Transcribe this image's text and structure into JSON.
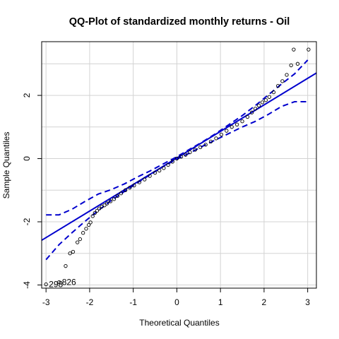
{
  "chart_data": {
    "type": "scatter",
    "title": "QQ-Plot of standardized monthly returns - Oil",
    "xlabel": "Theoretical Quantiles",
    "ylabel": "Sample Quantiles",
    "xlim": [
      -3.1,
      3.2
    ],
    "ylim": [
      -4.1,
      3.7
    ],
    "x_ticks": [
      -3,
      -2,
      -1,
      0,
      1,
      2,
      3
    ],
    "y_ticks": [
      -4,
      -2,
      0,
      2
    ],
    "grid": true,
    "colors": {
      "points": "#000000",
      "reference": "#0000cd",
      "envelope": "#0000cd",
      "grid": "#d3d3d3"
    },
    "points": [
      [
        -3.0,
        -3.98
      ],
      [
        -2.7,
        -3.91
      ],
      [
        -2.55,
        -3.4
      ],
      [
        -2.45,
        -3.0
      ],
      [
        -2.38,
        -2.95
      ],
      [
        -2.28,
        -2.65
      ],
      [
        -2.22,
        -2.55
      ],
      [
        -2.15,
        -2.35
      ],
      [
        -2.08,
        -2.22
      ],
      [
        -2.02,
        -2.1
      ],
      [
        -1.98,
        -2.02
      ],
      [
        -1.93,
        -1.82
      ],
      [
        -1.88,
        -1.72
      ],
      [
        -1.83,
        -1.65
      ],
      [
        -1.78,
        -1.58
      ],
      [
        -1.72,
        -1.52
      ],
      [
        -1.66,
        -1.48
      ],
      [
        -1.6,
        -1.42
      ],
      [
        -1.52,
        -1.35
      ],
      [
        -1.44,
        -1.28
      ],
      [
        -1.36,
        -1.18
      ],
      [
        -1.28,
        -1.1
      ],
      [
        -1.18,
        -1.0
      ],
      [
        -1.08,
        -0.92
      ],
      [
        -0.98,
        -0.85
      ],
      [
        -0.86,
        -0.75
      ],
      [
        -0.74,
        -0.66
      ],
      [
        -0.62,
        -0.55
      ],
      [
        -0.5,
        -0.45
      ],
      [
        -0.4,
        -0.38
      ],
      [
        -0.3,
        -0.3
      ],
      [
        -0.2,
        -0.2
      ],
      [
        -0.1,
        -0.1
      ],
      [
        0.0,
        0.0
      ],
      [
        0.1,
        0.06
      ],
      [
        0.2,
        0.12
      ],
      [
        0.3,
        0.2
      ],
      [
        0.42,
        0.28
      ],
      [
        0.54,
        0.36
      ],
      [
        0.66,
        0.44
      ],
      [
        0.78,
        0.54
      ],
      [
        0.9,
        0.64
      ],
      [
        1.02,
        0.76
      ],
      [
        1.14,
        0.88
      ],
      [
        1.26,
        1.0
      ],
      [
        1.38,
        1.08
      ],
      [
        1.5,
        1.18
      ],
      [
        1.62,
        1.32
      ],
      [
        1.72,
        1.46
      ],
      [
        1.8,
        1.58
      ],
      [
        1.88,
        1.68
      ],
      [
        1.96,
        1.78
      ],
      [
        2.04,
        1.85
      ],
      [
        2.12,
        1.95
      ],
      [
        2.22,
        2.1
      ],
      [
        2.32,
        2.3
      ],
      [
        2.42,
        2.45
      ],
      [
        2.52,
        2.65
      ],
      [
        2.62,
        2.95
      ],
      [
        2.77,
        3.0
      ],
      [
        2.68,
        3.45
      ],
      [
        3.02,
        3.45
      ]
    ],
    "point_labels": [
      {
        "text": "298",
        "x": -3.0,
        "y": -3.98
      },
      {
        "text": "826",
        "x": -2.7,
        "y": -3.91
      }
    ],
    "reference_line": {
      "intercept": 0.02,
      "slope": 0.84
    },
    "envelope_upper": [
      [
        -3.0,
        -1.78
      ],
      [
        -2.7,
        -1.78
      ],
      [
        -2.4,
        -1.6
      ],
      [
        -2.1,
        -1.35
      ],
      [
        -1.8,
        -1.12
      ],
      [
        -1.5,
        -0.98
      ],
      [
        -1.2,
        -0.8
      ],
      [
        -0.9,
        -0.58
      ],
      [
        -0.6,
        -0.38
      ],
      [
        -0.3,
        -0.16
      ],
      [
        0.0,
        0.06
      ],
      [
        0.3,
        0.3
      ],
      [
        0.6,
        0.54
      ],
      [
        0.9,
        0.8
      ],
      [
        1.2,
        1.08
      ],
      [
        1.5,
        1.36
      ],
      [
        1.8,
        1.68
      ],
      [
        2.1,
        2.02
      ],
      [
        2.4,
        2.36
      ],
      [
        2.7,
        2.68
      ],
      [
        3.0,
        3.12
      ]
    ],
    "envelope_lower": [
      [
        -3.0,
        -3.2
      ],
      [
        -2.7,
        -2.72
      ],
      [
        -2.4,
        -2.34
      ],
      [
        -2.1,
        -1.98
      ],
      [
        -1.8,
        -1.64
      ],
      [
        -1.5,
        -1.32
      ],
      [
        -1.2,
        -1.04
      ],
      [
        -0.9,
        -0.76
      ],
      [
        -0.6,
        -0.5
      ],
      [
        -0.3,
        -0.24
      ],
      [
        0.0,
        -0.02
      ],
      [
        0.3,
        0.18
      ],
      [
        0.6,
        0.4
      ],
      [
        0.9,
        0.6
      ],
      [
        1.2,
        0.8
      ],
      [
        1.5,
        1.0
      ],
      [
        1.8,
        1.18
      ],
      [
        2.1,
        1.4
      ],
      [
        2.4,
        1.65
      ],
      [
        2.7,
        1.8
      ],
      [
        3.0,
        1.8
      ]
    ]
  }
}
